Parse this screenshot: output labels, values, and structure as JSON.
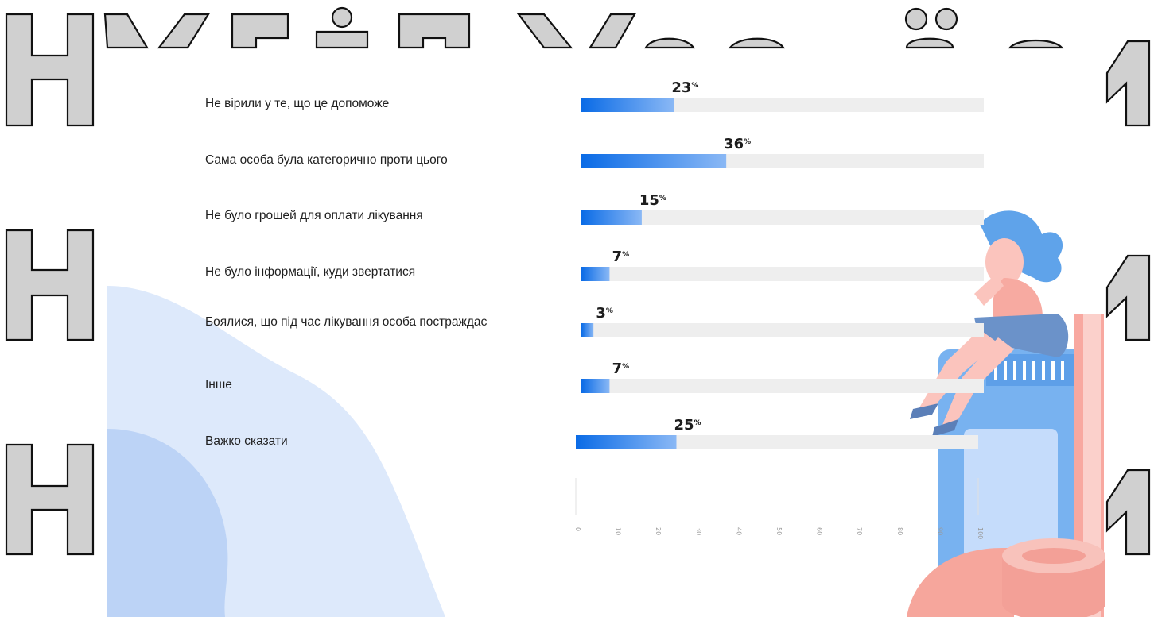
{
  "colors": {
    "bar_dark": "#0a6be6",
    "bar_light": "#8ab8f5",
    "track": "#eeeeee",
    "blob_light": "#dde9fb",
    "blob_mid": "#bcd3f6",
    "outline_fill": "#d0d0d0"
  },
  "chart_data": {
    "type": "bar",
    "orientation": "horizontal",
    "categories": [
      "Не вірили у те, що це допоможе",
      "Сама особа була категорично проти цього",
      "Не було грошей для оплати лікування",
      "Не було інформації, куди звертатися",
      "Боялися, що під час лікування особа постраждає",
      "Інше",
      "Важко сказати"
    ],
    "values": [
      23,
      36,
      15,
      7,
      3,
      7,
      25
    ],
    "value_suffix": "%",
    "xlim": [
      0,
      100
    ],
    "x_ticks": [
      "0",
      "10",
      "20",
      "30",
      "40",
      "50",
      "60",
      "70",
      "80",
      "90",
      "100"
    ],
    "grid": false
  }
}
